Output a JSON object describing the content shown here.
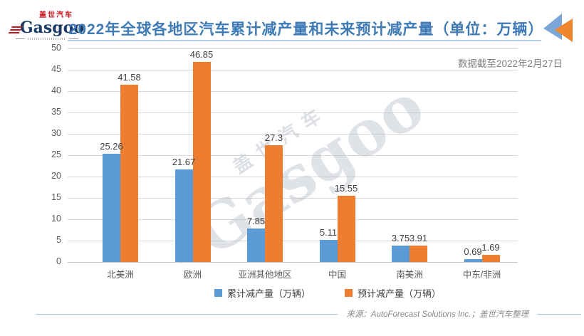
{
  "logo": {
    "brand_cn": "盖世汽车",
    "brand_en": "Gasgoo"
  },
  "header": {
    "title": "2022年全球各地区汽车累计减产量和未来预计减产量（单位：万辆）"
  },
  "chart_note": "数据截至2022年2月27日",
  "watermark": {
    "cn": "盖世汽车",
    "en": "Gasgoo"
  },
  "footer": {
    "source": "来源：AutoForecast Solutions Inc.；盖世汽车整理"
  },
  "colors": {
    "title_blue": "#3E7BB6",
    "underline_blue": "#B3CDE6",
    "series_blue": "#5B9BD5",
    "series_orange": "#ED7D31",
    "grid_gray": "#D9D9D9",
    "axis_text": "#595959",
    "value_text": "#404040",
    "note_text": "#808080",
    "logo_navy": "#1A3A66",
    "logo_red": "#C8161D",
    "footer_line_blue": "#9DC3E6",
    "deco_triangle_blue": "#7DA6D8",
    "deco_triangle_orange": "#F0862B"
  },
  "chart_data": {
    "type": "bar",
    "title": "2022年全球各地区汽车累计减产量和未来预计减产量（单位：万辆）",
    "categories": [
      "北美洲",
      "欧洲",
      "亚洲其他地区",
      "中国",
      "南美洲",
      "中东/非洲"
    ],
    "series": [
      {
        "name": "累计减产量（万辆）",
        "color": "#5B9BD5",
        "values": [
          25.26,
          21.67,
          7.85,
          5.11,
          3.75,
          0.69
        ]
      },
      {
        "name": "预计减产量（万辆）",
        "color": "#ED7D31",
        "values": [
          41.58,
          46.85,
          27.3,
          15.55,
          3.91,
          1.69
        ]
      }
    ],
    "xlabel": "",
    "ylabel": "",
    "ylim": [
      0,
      50
    ],
    "yticks": [
      0,
      5,
      10,
      15,
      20,
      25,
      30,
      35,
      40,
      45,
      50
    ],
    "grid": true,
    "legend_position": "bottom",
    "annotation": "数据截至2022年2月27日",
    "source": "来源：AutoForecast Solutions Inc.；盖世汽车整理"
  }
}
